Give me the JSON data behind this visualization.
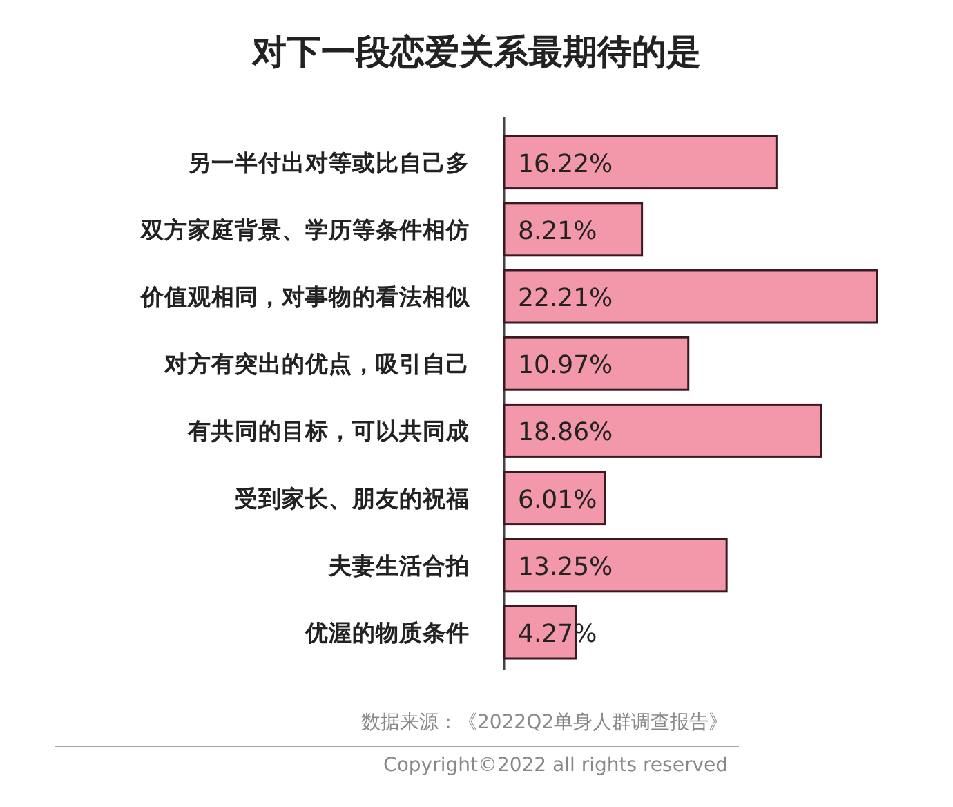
{
  "chart_data": {
    "type": "bar",
    "orientation": "horizontal",
    "title": "对下一段恋爱关系最期待的是",
    "categories": [
      "另一半付出对等或比自己多",
      "双方家庭背景、学历等条件相仿",
      "价值观相同，对事物的看法相似",
      "对方有突出的优点，吸引自己",
      "有共同的目标，可以共同成",
      "受到家长、朋友的祝福",
      "夫妻生活合拍",
      "优渥的物质条件"
    ],
    "values": [
      16.22,
      8.21,
      22.21,
      10.97,
      18.86,
      6.01,
      13.25,
      4.27
    ],
    "value_labels": [
      "16.22%",
      "8.21%",
      "22.21%",
      "10.97%",
      "18.86%",
      "6.01%",
      "13.25%",
      "4.27%"
    ],
    "color": "#f397aa",
    "annotations": [
      "数据来源：《2022Q2单身人群调查报告》",
      "Copyright©2022 all rights reserved"
    ]
  }
}
